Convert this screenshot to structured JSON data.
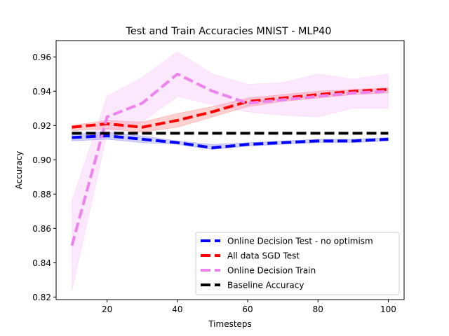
{
  "chart_data": {
    "type": "line",
    "title": "Test and Train Accuracies MNIST - MLP40",
    "xlabel": "Timesteps",
    "ylabel": "Accuracy",
    "xlim": [
      5.5,
      104.5
    ],
    "ylim": [
      0.8185,
      0.9695
    ],
    "xticks": [
      20,
      40,
      60,
      80,
      100
    ],
    "yticks": [
      0.82,
      0.84,
      0.86,
      0.88,
      0.9,
      0.92,
      0.94,
      0.96
    ],
    "ytick_labels": [
      "0.82",
      "0.84",
      "0.86",
      "0.88",
      "0.90",
      "0.92",
      "0.94",
      "0.96"
    ],
    "grid": false,
    "legend_position": "lower-right",
    "x": [
      10,
      20,
      30,
      40,
      50,
      60,
      70,
      80,
      90,
      100
    ],
    "series": [
      {
        "name": "Online Decision Test - no optimism",
        "color": "#0000ff",
        "values": [
          0.913,
          0.914,
          0.912,
          0.91,
          0.907,
          0.909,
          0.91,
          0.911,
          0.911,
          0.912
        ],
        "lower": [
          0.911,
          0.912,
          0.91,
          0.909,
          0.906,
          0.908,
          0.909,
          0.91,
          0.91,
          0.911
        ],
        "upper": [
          0.915,
          0.916,
          0.914,
          0.911,
          0.909,
          0.91,
          0.911,
          0.912,
          0.912,
          0.913
        ]
      },
      {
        "name": "All data SGD Test",
        "color": "#ff0000",
        "values": [
          0.919,
          0.921,
          0.919,
          0.923,
          0.928,
          0.934,
          0.936,
          0.938,
          0.94,
          0.941
        ],
        "lower": [
          0.917,
          0.918,
          0.916,
          0.919,
          0.925,
          0.931,
          0.934,
          0.936,
          0.938,
          0.939
        ],
        "upper": [
          0.92,
          0.923,
          0.922,
          0.927,
          0.931,
          0.936,
          0.938,
          0.94,
          0.941,
          0.942
        ]
      },
      {
        "name": "Online Decision Train",
        "color": "#ee82ee",
        "values": [
          0.85,
          0.925,
          0.933,
          0.95,
          0.94,
          0.933,
          0.935,
          0.937,
          0.939,
          0.94
        ],
        "lower": [
          0.824,
          0.915,
          0.922,
          0.937,
          0.932,
          0.928,
          0.926,
          0.925,
          0.93,
          0.93
        ],
        "upper": [
          0.876,
          0.937,
          0.948,
          0.963,
          0.95,
          0.944,
          0.945,
          0.95,
          0.947,
          0.95
        ]
      },
      {
        "name": "Baseline Accuracy",
        "color": "#000000",
        "values": [
          0.9155,
          0.9155,
          0.9155,
          0.9155,
          0.9155,
          0.9155,
          0.9155,
          0.9155,
          0.9155,
          0.9155
        ]
      }
    ]
  }
}
